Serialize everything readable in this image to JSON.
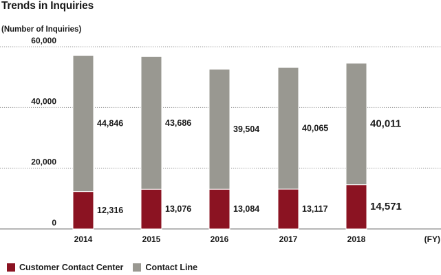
{
  "title": "Trends in Inquiries",
  "unit_label": "(Number of Inquiries)",
  "x_unit": "(FY)",
  "colors": {
    "Customer Contact Center": "#8b1322",
    "Contact Line": "#999891"
  },
  "chart_data": {
    "type": "bar",
    "stacked": true,
    "categories": [
      "2014",
      "2015",
      "2016",
      "2017",
      "2018"
    ],
    "series": [
      {
        "name": "Customer Contact Center",
        "values": [
          12316,
          13076,
          13084,
          13117,
          14571
        ],
        "labels": [
          "12,316",
          "13,076",
          "13,084",
          "13,117",
          "14,571"
        ]
      },
      {
        "name": "Contact Line",
        "values": [
          44846,
          43686,
          39504,
          40065,
          40011
        ],
        "labels": [
          "44,846",
          "43,686",
          "39,504",
          "40,065",
          "40,011"
        ]
      }
    ],
    "title": "Trends in Inquiries",
    "ylabel": "(Number of Inquiries)",
    "xlabel": "(FY)",
    "ylim": [
      0,
      60000
    ],
    "yticks": [
      0,
      20000,
      40000,
      60000
    ],
    "ytick_labels": [
      "0",
      "20,000",
      "40,000",
      "60,000"
    ],
    "grid": true,
    "legend": "bottom-left"
  }
}
